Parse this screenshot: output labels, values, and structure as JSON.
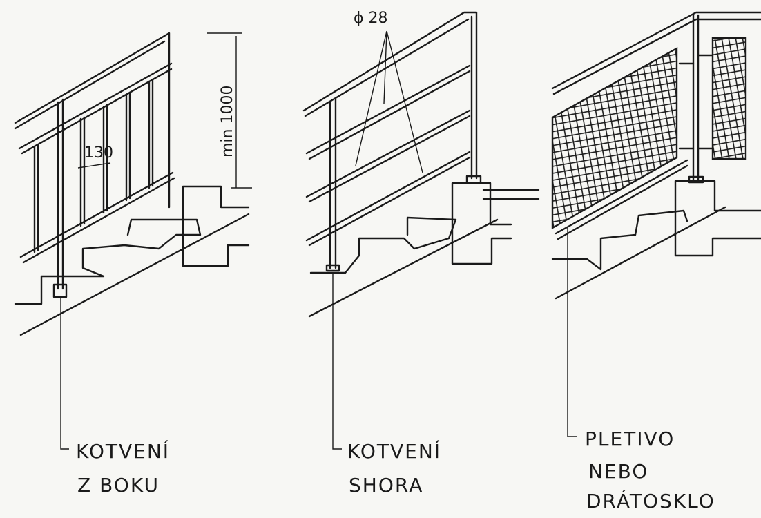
{
  "dimensions": {
    "diameter": "ϕ 28",
    "spacing": "130",
    "min_height": "min 1000"
  },
  "labels": {
    "side_anchor_line1": "KOTVENÍ",
    "side_anchor_line2": "Z BOKU",
    "top_anchor_line1": "KOTVENÍ",
    "top_anchor_line2": "SHORA",
    "infill_line1": "PLETIVO",
    "infill_line2": "NEBO",
    "infill_line3": "DRÁTOSKLO"
  },
  "colors": {
    "ink": "#1a1a1a",
    "paper": "#f7f7f4"
  }
}
